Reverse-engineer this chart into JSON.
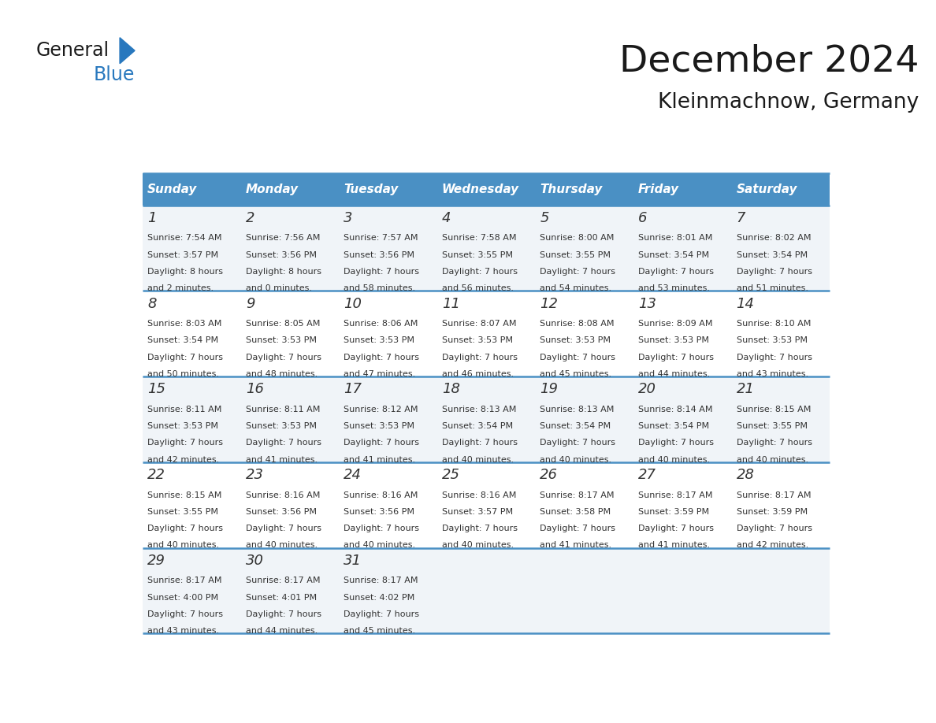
{
  "title": "December 2024",
  "subtitle": "Kleinmachnow, Germany",
  "days_of_week": [
    "Sunday",
    "Monday",
    "Tuesday",
    "Wednesday",
    "Thursday",
    "Friday",
    "Saturday"
  ],
  "header_bg": "#4a90c4",
  "header_text": "#ffffff",
  "odd_row_bg": "#f0f4f8",
  "even_row_bg": "#ffffff",
  "border_color": "#4a90c4",
  "day_num_color": "#333333",
  "cell_text_color": "#333333",
  "title_color": "#1a1a1a",
  "logo_general_color": "#1a1a1a",
  "logo_blue_color": "#2878be",
  "calendar_data": [
    [
      {
        "day": 1,
        "sunrise": "7:54 AM",
        "sunset": "3:57 PM",
        "daylight_h": "8 hours",
        "daylight_m": "and 2 minutes."
      },
      {
        "day": 2,
        "sunrise": "7:56 AM",
        "sunset": "3:56 PM",
        "daylight_h": "8 hours",
        "daylight_m": "and 0 minutes."
      },
      {
        "day": 3,
        "sunrise": "7:57 AM",
        "sunset": "3:56 PM",
        "daylight_h": "7 hours",
        "daylight_m": "and 58 minutes."
      },
      {
        "day": 4,
        "sunrise": "7:58 AM",
        "sunset": "3:55 PM",
        "daylight_h": "7 hours",
        "daylight_m": "and 56 minutes."
      },
      {
        "day": 5,
        "sunrise": "8:00 AM",
        "sunset": "3:55 PM",
        "daylight_h": "7 hours",
        "daylight_m": "and 54 minutes."
      },
      {
        "day": 6,
        "sunrise": "8:01 AM",
        "sunset": "3:54 PM",
        "daylight_h": "7 hours",
        "daylight_m": "and 53 minutes."
      },
      {
        "day": 7,
        "sunrise": "8:02 AM",
        "sunset": "3:54 PM",
        "daylight_h": "7 hours",
        "daylight_m": "and 51 minutes."
      }
    ],
    [
      {
        "day": 8,
        "sunrise": "8:03 AM",
        "sunset": "3:54 PM",
        "daylight_h": "7 hours",
        "daylight_m": "and 50 minutes."
      },
      {
        "day": 9,
        "sunrise": "8:05 AM",
        "sunset": "3:53 PM",
        "daylight_h": "7 hours",
        "daylight_m": "and 48 minutes."
      },
      {
        "day": 10,
        "sunrise": "8:06 AM",
        "sunset": "3:53 PM",
        "daylight_h": "7 hours",
        "daylight_m": "and 47 minutes."
      },
      {
        "day": 11,
        "sunrise": "8:07 AM",
        "sunset": "3:53 PM",
        "daylight_h": "7 hours",
        "daylight_m": "and 46 minutes."
      },
      {
        "day": 12,
        "sunrise": "8:08 AM",
        "sunset": "3:53 PM",
        "daylight_h": "7 hours",
        "daylight_m": "and 45 minutes."
      },
      {
        "day": 13,
        "sunrise": "8:09 AM",
        "sunset": "3:53 PM",
        "daylight_h": "7 hours",
        "daylight_m": "and 44 minutes."
      },
      {
        "day": 14,
        "sunrise": "8:10 AM",
        "sunset": "3:53 PM",
        "daylight_h": "7 hours",
        "daylight_m": "and 43 minutes."
      }
    ],
    [
      {
        "day": 15,
        "sunrise": "8:11 AM",
        "sunset": "3:53 PM",
        "daylight_h": "7 hours",
        "daylight_m": "and 42 minutes."
      },
      {
        "day": 16,
        "sunrise": "8:11 AM",
        "sunset": "3:53 PM",
        "daylight_h": "7 hours",
        "daylight_m": "and 41 minutes."
      },
      {
        "day": 17,
        "sunrise": "8:12 AM",
        "sunset": "3:53 PM",
        "daylight_h": "7 hours",
        "daylight_m": "and 41 minutes."
      },
      {
        "day": 18,
        "sunrise": "8:13 AM",
        "sunset": "3:54 PM",
        "daylight_h": "7 hours",
        "daylight_m": "and 40 minutes."
      },
      {
        "day": 19,
        "sunrise": "8:13 AM",
        "sunset": "3:54 PM",
        "daylight_h": "7 hours",
        "daylight_m": "and 40 minutes."
      },
      {
        "day": 20,
        "sunrise": "8:14 AM",
        "sunset": "3:54 PM",
        "daylight_h": "7 hours",
        "daylight_m": "and 40 minutes."
      },
      {
        "day": 21,
        "sunrise": "8:15 AM",
        "sunset": "3:55 PM",
        "daylight_h": "7 hours",
        "daylight_m": "and 40 minutes."
      }
    ],
    [
      {
        "day": 22,
        "sunrise": "8:15 AM",
        "sunset": "3:55 PM",
        "daylight_h": "7 hours",
        "daylight_m": "and 40 minutes."
      },
      {
        "day": 23,
        "sunrise": "8:16 AM",
        "sunset": "3:56 PM",
        "daylight_h": "7 hours",
        "daylight_m": "and 40 minutes."
      },
      {
        "day": 24,
        "sunrise": "8:16 AM",
        "sunset": "3:56 PM",
        "daylight_h": "7 hours",
        "daylight_m": "and 40 minutes."
      },
      {
        "day": 25,
        "sunrise": "8:16 AM",
        "sunset": "3:57 PM",
        "daylight_h": "7 hours",
        "daylight_m": "and 40 minutes."
      },
      {
        "day": 26,
        "sunrise": "8:17 AM",
        "sunset": "3:58 PM",
        "daylight_h": "7 hours",
        "daylight_m": "and 41 minutes."
      },
      {
        "day": 27,
        "sunrise": "8:17 AM",
        "sunset": "3:59 PM",
        "daylight_h": "7 hours",
        "daylight_m": "and 41 minutes."
      },
      {
        "day": 28,
        "sunrise": "8:17 AM",
        "sunset": "3:59 PM",
        "daylight_h": "7 hours",
        "daylight_m": "and 42 minutes."
      }
    ],
    [
      {
        "day": 29,
        "sunrise": "8:17 AM",
        "sunset": "4:00 PM",
        "daylight_h": "7 hours",
        "daylight_m": "and 43 minutes."
      },
      {
        "day": 30,
        "sunrise": "8:17 AM",
        "sunset": "4:01 PM",
        "daylight_h": "7 hours",
        "daylight_m": "and 44 minutes."
      },
      {
        "day": 31,
        "sunrise": "8:17 AM",
        "sunset": "4:02 PM",
        "daylight_h": "7 hours",
        "daylight_m": "and 45 minutes."
      },
      null,
      null,
      null,
      null
    ]
  ]
}
